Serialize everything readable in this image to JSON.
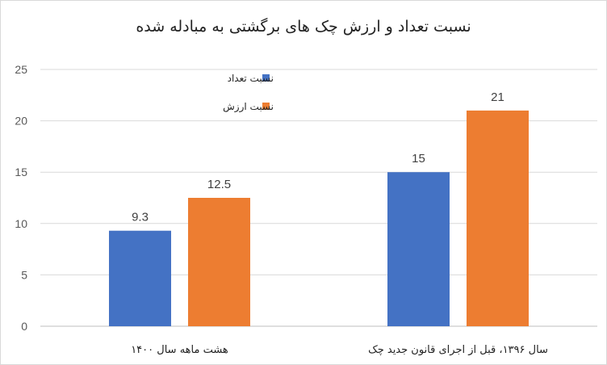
{
  "chart_data": {
    "type": "bar",
    "title": "نسبت تعداد و ارزش چک های برگشتی به مبادله شده",
    "categories": [
      "هشت ماهه سال ۱۴۰۰",
      "سال ۱۳۹۶، قبل از اجرای قانون جدید چک"
    ],
    "series": [
      {
        "name": "نسبت تعداد",
        "color": "#4472c4",
        "values": [
          9.3,
          15
        ]
      },
      {
        "name": "نسبت ارزش",
        "color": "#ed7d31",
        "values": [
          12.5,
          21
        ]
      }
    ],
    "data_labels": [
      [
        "9.3",
        "15"
      ],
      [
        "12.5",
        "21"
      ]
    ],
    "ylim": [
      0,
      25
    ],
    "yticks": [
      0,
      5,
      10,
      15,
      20,
      25
    ],
    "grid": true,
    "legend_position": "top-center"
  }
}
